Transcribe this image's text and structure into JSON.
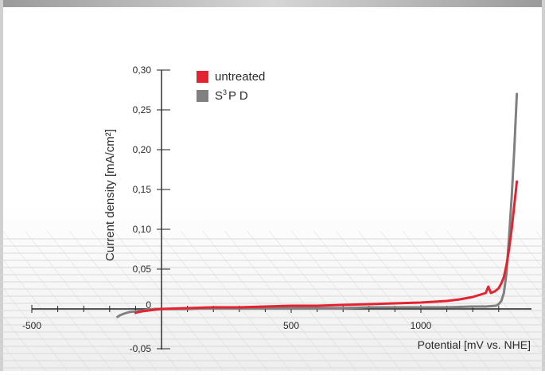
{
  "chart_data": {
    "type": "line",
    "title": "",
    "xlabel": "Potential [mV vs. NHE]",
    "ylabel": "Current density [mA/cm²]",
    "xlim": [
      -500,
      1350
    ],
    "ylim": [
      -0.05,
      0.3
    ],
    "x_ticks": [
      -500,
      500,
      1000
    ],
    "x_tick_labels": [
      "-500",
      "500",
      "1000"
    ],
    "y_ticks": [
      -0.05,
      0,
      0.05,
      0.1,
      0.15,
      0.2,
      0.25,
      0.3
    ],
    "y_tick_labels": [
      "-0,05",
      "0",
      "0,05",
      "0,10",
      "0,15",
      "0,20",
      "0,25",
      "0,30"
    ],
    "legend_position": "top-left",
    "legend_label_base": "S",
    "legend_label_sup": "3",
    "legend_label_rest": "P D",
    "series": [
      {
        "name": "untreated",
        "color": "#e52330",
        "x": [
          -100,
          -90,
          -75,
          -50,
          -25,
          0,
          100,
          200,
          300,
          400,
          500,
          600,
          700,
          800,
          900,
          1000,
          1100,
          1150,
          1200,
          1230,
          1250,
          1260,
          1270,
          1285,
          1300,
          1310,
          1320,
          1330,
          1340,
          1350,
          1360,
          1370
        ],
        "y": [
          -0.005,
          -0.004,
          -0.003,
          -0.002,
          -0.001,
          0.0,
          0.001,
          0.002,
          0.002,
          0.003,
          0.004,
          0.004,
          0.005,
          0.006,
          0.007,
          0.008,
          0.01,
          0.012,
          0.015,
          0.018,
          0.02,
          0.028,
          0.02,
          0.022,
          0.026,
          0.032,
          0.04,
          0.055,
          0.075,
          0.1,
          0.13,
          0.16
        ]
      },
      {
        "name": "S³P D",
        "color": "#808080",
        "x": [
          -170,
          -160,
          -145,
          -125,
          -100,
          -75,
          -50,
          -25,
          0,
          100,
          200,
          300,
          400,
          500,
          600,
          700,
          800,
          900,
          1000,
          1100,
          1200,
          1250,
          1290,
          1300,
          1310,
          1320,
          1330,
          1340,
          1350,
          1360,
          1370
        ],
        "y": [
          -0.01,
          -0.008,
          -0.006,
          -0.004,
          -0.003,
          -0.002,
          -0.001,
          0.0,
          0.0,
          0.0,
          0.001,
          0.001,
          0.001,
          0.001,
          0.001,
          0.001,
          0.002,
          0.002,
          0.002,
          0.002,
          0.003,
          0.003,
          0.004,
          0.006,
          0.01,
          0.02,
          0.045,
          0.09,
          0.14,
          0.2,
          0.27
        ]
      }
    ]
  }
}
